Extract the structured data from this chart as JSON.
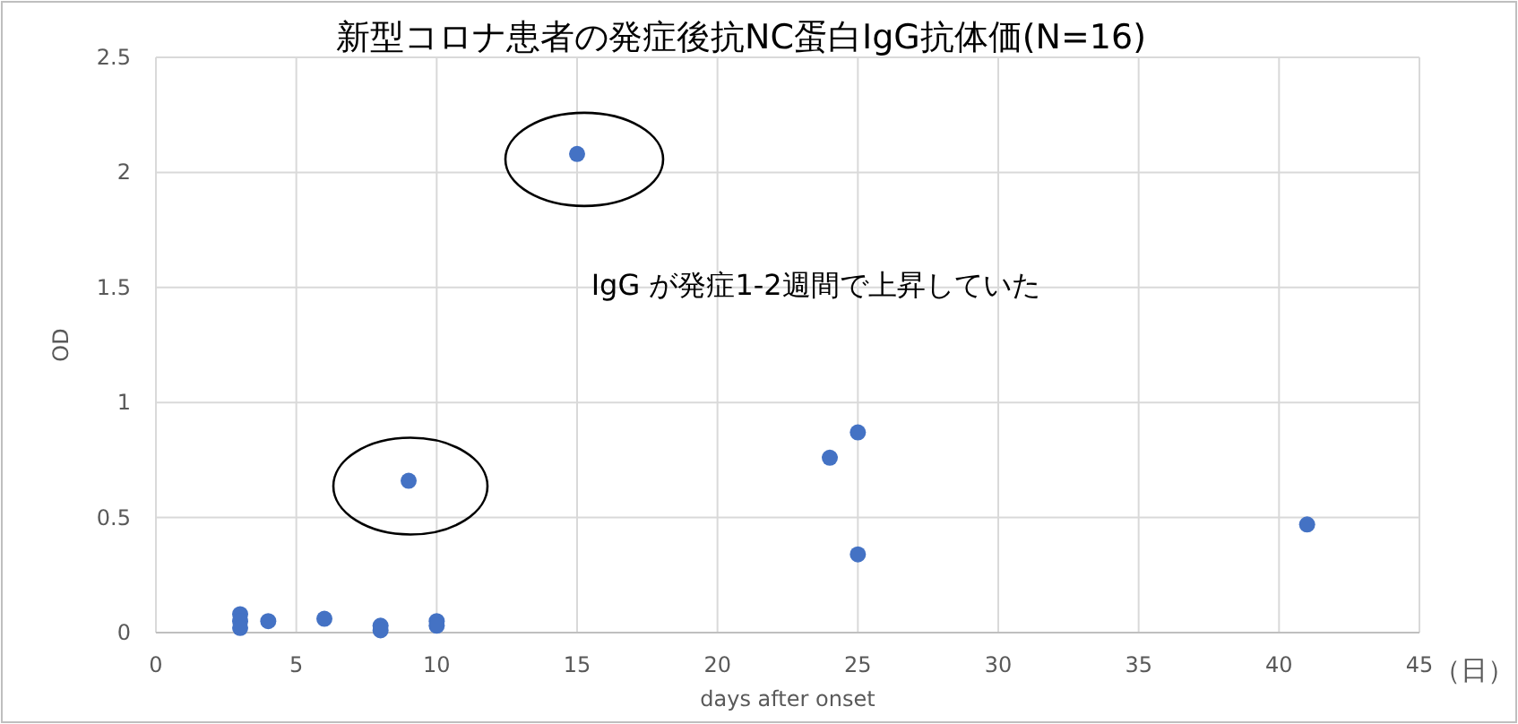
{
  "chart_data": {
    "type": "scatter",
    "title": "新型コロナ患者の発症後抗NC蛋白IgG抗体価(N=16)",
    "xlabel": "days after onset",
    "ylabel": "OD",
    "x": [
      3,
      3,
      3,
      4,
      6,
      8,
      8,
      9,
      10,
      10,
      15,
      24,
      25,
      25,
      41
    ],
    "values": [
      0.08,
      0.05,
      0.02,
      0.05,
      0.06,
      0.03,
      0.01,
      0.66,
      0.05,
      0.03,
      2.08,
      0.76,
      0.87,
      0.34,
      0.47
    ],
    "color": "#4472c4",
    "marker": "circle",
    "xlim": [
      0,
      45
    ],
    "xticks": [
      0,
      5,
      10,
      15,
      20,
      25,
      30,
      35,
      40,
      45
    ],
    "ylim": [
      0,
      2.5
    ],
    "yticks": [
      0,
      0.5,
      1,
      1.5,
      2,
      2.5
    ],
    "grid": true,
    "annotations": [
      "IgG が発症1-2週間で上昇していた",
      "（日）"
    ]
  }
}
